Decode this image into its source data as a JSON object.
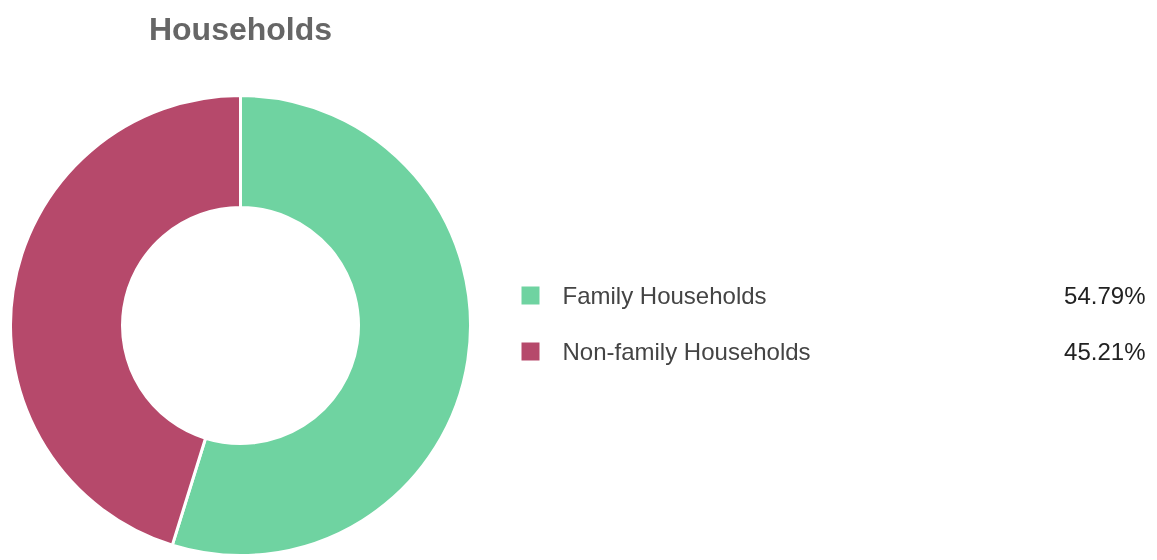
{
  "chart_data": {
    "type": "donut",
    "title": "Households",
    "categories": [
      "Family Households",
      "Non-family Households"
    ],
    "values": [
      54.79,
      45.21
    ],
    "colors": [
      "#6fd3a1",
      "#b6496b"
    ],
    "value_labels": [
      "54.79%",
      "45.21%"
    ],
    "legend": "right"
  }
}
